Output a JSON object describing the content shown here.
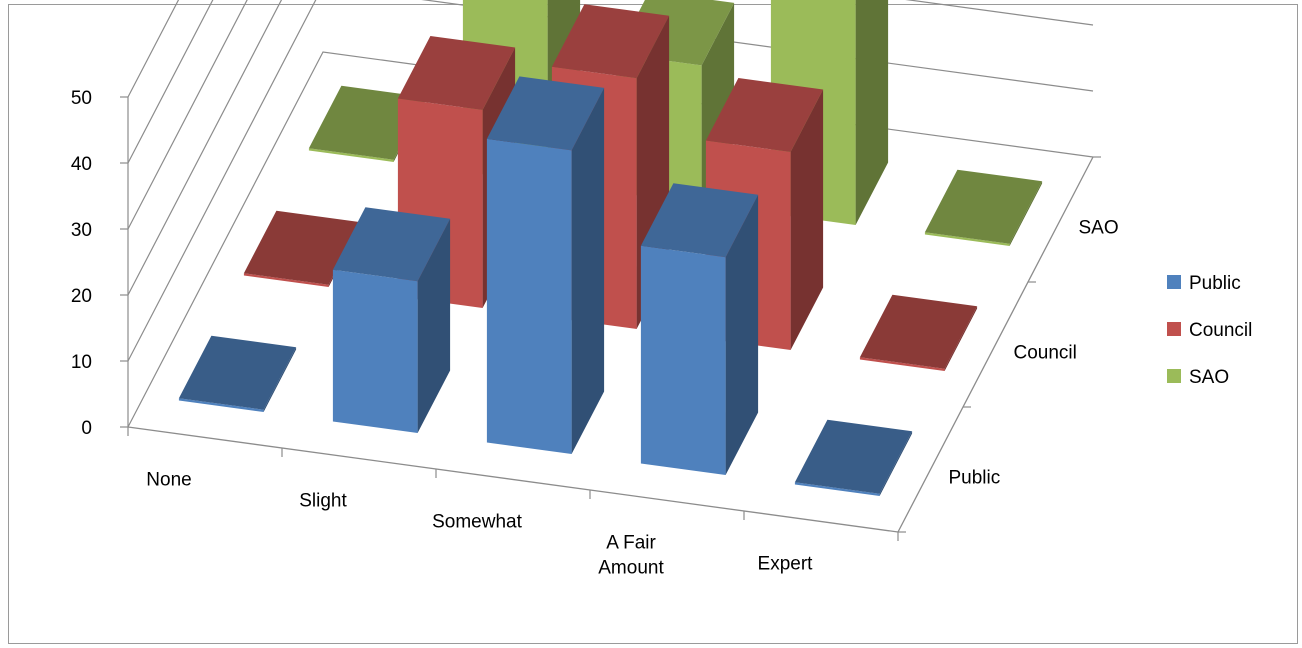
{
  "chart_data": {
    "type": "bar",
    "subtype": "3d-clustered-column",
    "title": "",
    "xlabel": "",
    "ylabel": "",
    "categories": [
      "None",
      "Slight",
      "Somewhat",
      "A Fair Amount",
      "Expert"
    ],
    "series": [
      {
        "name": "Public",
        "values": [
          0,
          23,
          46,
          33,
          0
        ],
        "color": "#4F81BD"
      },
      {
        "name": "Council",
        "values": [
          0,
          30,
          38,
          30,
          0
        ],
        "color": "#C0504D"
      },
      {
        "name": "SAO",
        "values": [
          0,
          29,
          21,
          43,
          0
        ],
        "color": "#9BBB59"
      }
    ],
    "ylim": [
      0,
      50
    ],
    "y_ticks": [
      "0",
      "10",
      "20",
      "30",
      "40",
      "50"
    ],
    "depth_labels": [
      "SAO",
      "Council",
      "Public"
    ],
    "grid": true,
    "legend": {
      "position": "right",
      "entries": [
        "Public",
        "Council",
        "SAO"
      ]
    }
  }
}
